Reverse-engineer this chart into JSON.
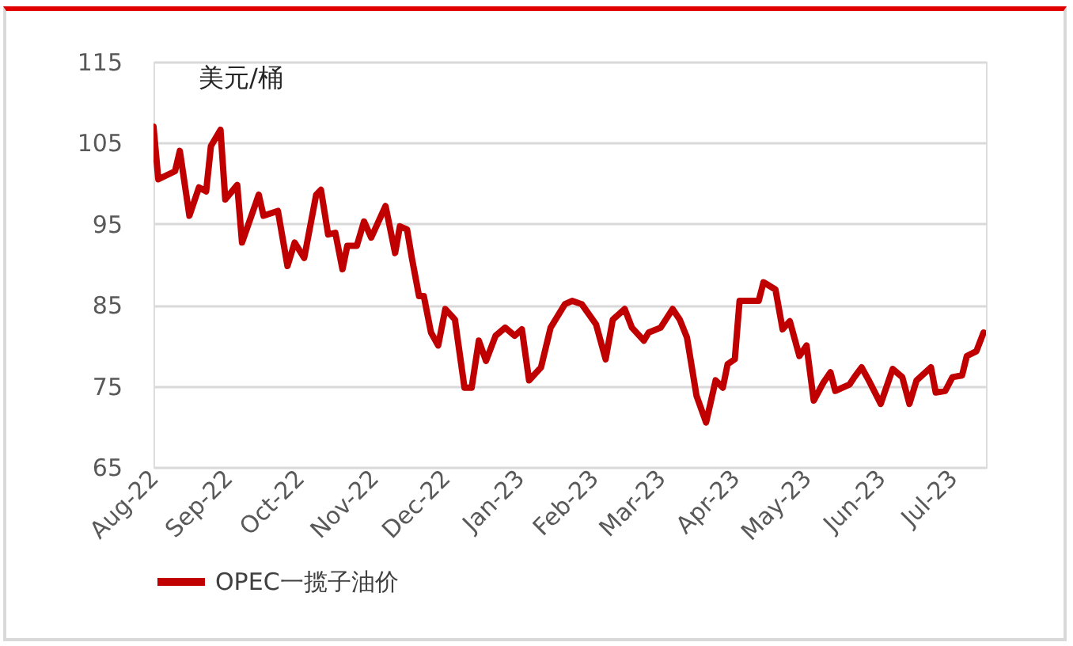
{
  "chart_data": {
    "type": "line",
    "ylabel": "美元/桶",
    "x": [
      "2022-08-01",
      "2022-08-03",
      "2022-08-10",
      "2022-08-12",
      "2022-08-16",
      "2022-08-20",
      "2022-08-23",
      "2022-08-25",
      "2022-08-29",
      "2022-08-31",
      "2022-09-05",
      "2022-09-07",
      "2022-09-14",
      "2022-09-16",
      "2022-09-22",
      "2022-09-26",
      "2022-09-29",
      "2022-10-03",
      "2022-10-08",
      "2022-10-10",
      "2022-10-13",
      "2022-10-16",
      "2022-10-19",
      "2022-10-21",
      "2022-10-25",
      "2022-10-28",
      "2022-10-31",
      "2022-11-06",
      "2022-11-10",
      "2022-11-12",
      "2022-11-15",
      "2022-11-17",
      "2022-11-20",
      "2022-11-22",
      "2022-11-25",
      "2022-11-28",
      "2022-12-01",
      "2022-12-05",
      "2022-12-09",
      "2022-12-12",
      "2022-12-15",
      "2022-12-18",
      "2022-12-22",
      "2022-12-26",
      "2022-12-30",
      "2023-01-02",
      "2023-01-05",
      "2023-01-10",
      "2023-01-14",
      "2023-01-20",
      "2023-01-23",
      "2023-01-27",
      "2023-02-02",
      "2023-02-06",
      "2023-02-09",
      "2023-02-14",
      "2023-02-17",
      "2023-02-22",
      "2023-02-24",
      "2023-03-01",
      "2023-03-06",
      "2023-03-09",
      "2023-03-12",
      "2023-03-16",
      "2023-03-20",
      "2023-03-24",
      "2023-03-27",
      "2023-03-29",
      "2023-04-01",
      "2023-04-03",
      "2023-04-11",
      "2023-04-13",
      "2023-04-18",
      "2023-04-21",
      "2023-04-24",
      "2023-04-28",
      "2023-05-01",
      "2023-05-04",
      "2023-05-08",
      "2023-05-11",
      "2023-05-13",
      "2023-05-19",
      "2023-05-21",
      "2023-05-24",
      "2023-05-27",
      "2023-06-01",
      "2023-06-06",
      "2023-06-10",
      "2023-06-13",
      "2023-06-16",
      "2023-06-22",
      "2023-06-24",
      "2023-06-28",
      "2023-07-01",
      "2023-07-05",
      "2023-07-07",
      "2023-07-11",
      "2023-07-14"
    ],
    "series": [
      {
        "name": "OPEC一揽子油价",
        "color": "#c00000",
        "values": [
          107,
          100.5,
          101.5,
          104,
          96,
          99.5,
          99,
          104.6,
          106.6,
          98,
          99.8,
          92.7,
          98.6,
          96,
          96.6,
          89.8,
          92.7,
          90.8,
          98.6,
          99.2,
          93.7,
          93.9,
          89.4,
          92.3,
          92.3,
          95.3,
          93.3,
          97.2,
          91.4,
          94.7,
          94.3,
          90.8,
          86.1,
          86.1,
          81.6,
          80,
          84.5,
          83.2,
          74.8,
          74.8,
          80.6,
          78.1,
          81.2,
          82.2,
          81.2,
          82,
          75.7,
          77.3,
          82.2,
          85.1,
          85.5,
          85.1,
          82.6,
          78.3,
          83.2,
          84.5,
          82.2,
          80.6,
          81.6,
          82.2,
          84.5,
          83.2,
          81,
          73.8,
          70.5,
          75.7,
          74.8,
          77.7,
          78.3,
          85.5,
          85.5,
          87.8,
          86.9,
          82,
          83,
          78.7,
          80,
          73.2,
          75.4,
          76.7,
          74.4,
          75.2,
          76.1,
          77.3,
          75.7,
          72.8,
          77.1,
          76.1,
          72.8,
          75.7,
          77.3,
          74.2,
          74.4,
          76.1,
          76.3,
          78.7,
          79.3,
          81.6
        ]
      }
    ],
    "xlim": [
      "2022-08-01",
      "2023-07-15"
    ],
    "xticks": [
      {
        "value": "2022-08-01",
        "label": "Aug-22"
      },
      {
        "value": "2022-09-01",
        "label": "Sep-22"
      },
      {
        "value": "2022-10-01",
        "label": "Oct-22"
      },
      {
        "value": "2022-11-01",
        "label": "Nov-22"
      },
      {
        "value": "2022-12-01",
        "label": "Dec-22"
      },
      {
        "value": "2023-01-01",
        "label": "Jan-23"
      },
      {
        "value": "2023-02-01",
        "label": "Feb-23"
      },
      {
        "value": "2023-03-01",
        "label": "Mar-23"
      },
      {
        "value": "2023-04-01",
        "label": "Apr-23"
      },
      {
        "value": "2023-05-01",
        "label": "May-23"
      },
      {
        "value": "2023-06-01",
        "label": "Jun-23"
      },
      {
        "value": "2023-07-01",
        "label": "Jul-23"
      }
    ],
    "ylim": [
      65,
      115
    ],
    "yticks": [
      65,
      75,
      85,
      95,
      105,
      115
    ],
    "grid": "y",
    "legend": "bottom",
    "marker": "none",
    "line_style": "solid"
  }
}
